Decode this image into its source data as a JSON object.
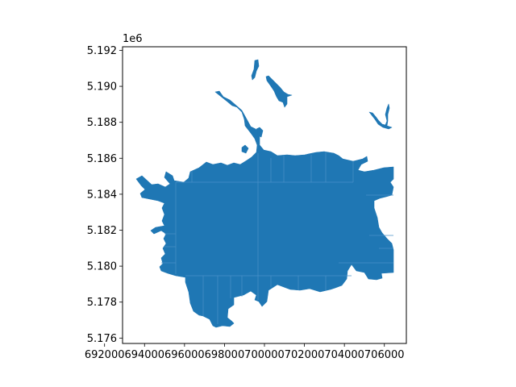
{
  "chart_data": {
    "type": "map",
    "title": "",
    "xlabel": "",
    "ylabel": "",
    "y_offset_label": "1e6",
    "xlim": [
      692900,
      707100
    ],
    "ylim": [
      5175700,
      5192200
    ],
    "x_ticks": [
      {
        "value": 692000,
        "label": "692000"
      },
      {
        "value": 694000,
        "label": "694000"
      },
      {
        "value": 696000,
        "label": "696000"
      },
      {
        "value": 698000,
        "label": "698000"
      },
      {
        "value": 700000,
        "label": "700000"
      },
      {
        "value": 702000,
        "label": "702000"
      },
      {
        "value": 704000,
        "label": "704000"
      },
      {
        "value": 706000,
        "label": "706000"
      }
    ],
    "y_ticks": [
      {
        "value": 5176000,
        "label": "5.176"
      },
      {
        "value": 5178000,
        "label": "5.178"
      },
      {
        "value": 5180000,
        "label": "5.180"
      },
      {
        "value": 5182000,
        "label": "5.182"
      },
      {
        "value": 5184000,
        "label": "5.184"
      },
      {
        "value": 5186000,
        "label": "5.186"
      },
      {
        "value": 5188000,
        "label": "5.188"
      },
      {
        "value": 5190000,
        "label": "5.190"
      },
      {
        "value": 5192000,
        "label": "5.192"
      }
    ],
    "fill_color": "#1f77b4",
    "edge_color": "#4a90c8",
    "grid": false,
    "legend": "none"
  }
}
